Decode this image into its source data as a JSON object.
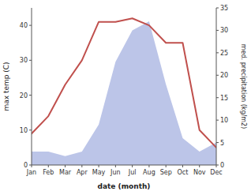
{
  "chart_data": {
    "type": "line",
    "categories": [
      "Jan",
      "Feb",
      "Mar",
      "Apr",
      "May",
      "Jun",
      "Jul",
      "Aug",
      "Sep",
      "Oct",
      "Nov",
      "Dec"
    ],
    "xlabel": "date (month)",
    "ylabel": "max temp (C)",
    "y2label": "med. precipitation (kg/m2)",
    "series": [
      {
        "type": "area",
        "axis": "y2",
        "color": "#bcc5e8",
        "values": [
          3,
          3,
          2,
          3,
          9,
          23,
          30,
          32,
          18,
          6,
          3,
          5
        ]
      },
      {
        "type": "line",
        "color": "#c0504d",
        "values": [
          9,
          14,
          23,
          30,
          41,
          41,
          42,
          40,
          35,
          35,
          10,
          5
        ]
      }
    ],
    "ylim": [
      0,
      45
    ],
    "yticks": [
      0,
      10,
      20,
      30,
      40
    ],
    "y2lim": [
      0,
      35
    ],
    "y2ticks": [
      0,
      5,
      10,
      15,
      20,
      25,
      30,
      35
    ],
    "grid": false
  }
}
